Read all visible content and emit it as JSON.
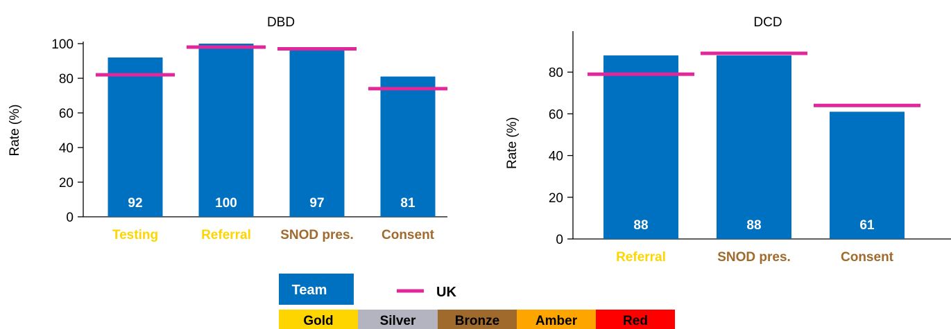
{
  "chart_data": [
    {
      "type": "bar",
      "title": "DBD",
      "ylabel": "Rate (%)",
      "ylim": [
        0,
        100
      ],
      "yticks": [
        0,
        20,
        40,
        60,
        80,
        100
      ],
      "categories": [
        "Testing",
        "Referral",
        "SNOD pres.",
        "Consent"
      ],
      "category_colors": [
        "#ffd500",
        "#ffd500",
        "#a06a2c",
        "#a06a2c"
      ],
      "series": [
        {
          "name": "Team",
          "values": [
            92,
            100,
            97,
            81
          ]
        },
        {
          "name": "UK",
          "values": [
            82,
            98,
            97,
            74
          ]
        }
      ],
      "data_labels": [
        "92",
        "100",
        "97",
        "81"
      ]
    },
    {
      "type": "bar",
      "title": "DCD",
      "ylabel": "Rate (%)",
      "ylim": [
        0,
        92
      ],
      "yticks": [
        0,
        20,
        40,
        60,
        80
      ],
      "categories": [
        "Referral",
        "SNOD pres.",
        "Consent"
      ],
      "category_colors": [
        "#ffd500",
        "#a06a2c",
        "#a06a2c"
      ],
      "series": [
        {
          "name": "Team",
          "values": [
            88,
            88,
            61
          ]
        },
        {
          "name": "UK",
          "values": [
            79,
            89,
            64
          ]
        }
      ],
      "data_labels": [
        "88",
        "88",
        "61"
      ]
    }
  ],
  "legend": {
    "team_label": "Team",
    "uk_label": "UK",
    "colors": {
      "team": "#0070c0",
      "uk": "#e0289a"
    }
  },
  "medal_key": [
    {
      "label": "Gold",
      "color": "#ffd500"
    },
    {
      "label": "Silver",
      "color": "#b4b4c0"
    },
    {
      "label": "Bronze",
      "color": "#a06a2c"
    },
    {
      "label": "Amber",
      "color": "#ffa500"
    },
    {
      "label": "Red",
      "color": "#ff0000"
    }
  ]
}
